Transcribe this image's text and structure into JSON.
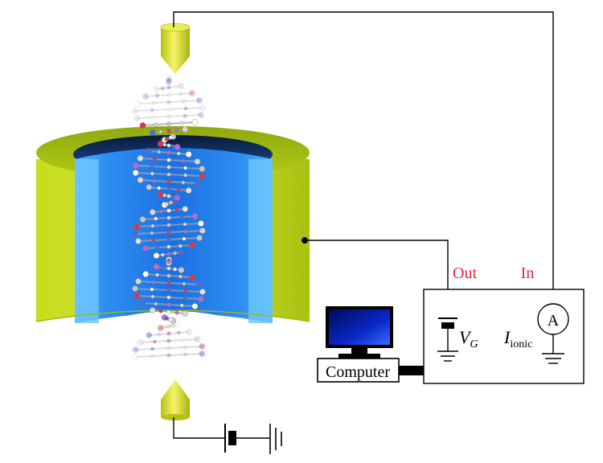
{
  "labels": {
    "out": "Out",
    "in": "In",
    "gate_voltage": "V",
    "gate_voltage_sub": "G",
    "ionic_current": "I",
    "ionic_current_sub": "ionic",
    "ammeter": "A",
    "computer": "Computer"
  },
  "colors": {
    "cylinder_outer": "#b6cf17",
    "cylinder_inner": "#1f86ef",
    "electrode": "#d8e21a",
    "wire": "#000000",
    "label_red": "#e8253f",
    "screen": "#0a1fa8"
  }
}
